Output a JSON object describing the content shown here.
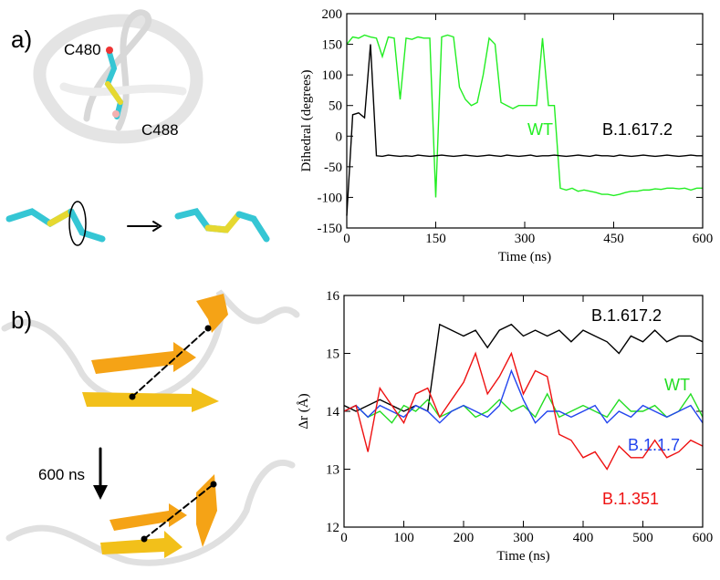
{
  "figure": {
    "panel_labels": [
      "a)",
      "b)"
    ],
    "annotations": [
      "C480",
      "C488",
      "600 ns"
    ]
  },
  "chart_data": [
    {
      "type": "line",
      "x_label": "Time (ns)",
      "y_label": "Dihedral (degrees)",
      "xlim": [
        0,
        600
      ],
      "xticks": [
        0,
        150,
        300,
        450,
        600
      ],
      "ylim": [
        -150,
        200
      ],
      "yticks": [
        -150,
        -100,
        -50,
        0,
        50,
        100,
        150,
        200
      ],
      "x": [
        0,
        10,
        20,
        30,
        40,
        50,
        60,
        70,
        80,
        90,
        100,
        110,
        120,
        130,
        140,
        150,
        160,
        170,
        180,
        190,
        200,
        210,
        220,
        230,
        240,
        250,
        260,
        270,
        280,
        290,
        300,
        310,
        320,
        330,
        340,
        350,
        360,
        370,
        380,
        390,
        400,
        410,
        420,
        430,
        440,
        450,
        460,
        470,
        480,
        490,
        500,
        510,
        520,
        530,
        540,
        550,
        560,
        570,
        580,
        590,
        600
      ],
      "series": [
        {
          "name": "WT",
          "color": "#22ee22",
          "values": [
            150,
            162,
            160,
            165,
            162,
            160,
            130,
            162,
            160,
            60,
            160,
            158,
            162,
            160,
            160,
            -100,
            162,
            165,
            162,
            80,
            60,
            50,
            55,
            100,
            160,
            150,
            55,
            50,
            45,
            50,
            50,
            50,
            50,
            160,
            50,
            50,
            -85,
            -88,
            -85,
            -90,
            -88,
            -90,
            -92,
            -95,
            -95,
            -97,
            -95,
            -92,
            -90,
            -90,
            -88,
            -88,
            -86,
            -87,
            -85,
            -85,
            -86,
            -85,
            -88,
            -85,
            -85
          ]
        },
        {
          "name": "B.1.617.2",
          "color": "#000000",
          "values": [
            -130,
            35,
            38,
            30,
            150,
            -32,
            -33,
            -31,
            -32,
            -33,
            -32,
            -33,
            -31,
            -32,
            -33,
            -32,
            -31,
            -32,
            -33,
            -32,
            -31,
            -32,
            -33,
            -32,
            -31,
            -32,
            -33,
            -31,
            -32,
            -33,
            -32,
            -31,
            -33,
            -32,
            -32,
            -31,
            -32,
            -33,
            -32,
            -31,
            -32,
            -33,
            -31,
            -32,
            -32,
            -33,
            -31,
            -32,
            -33,
            -32,
            -31,
            -32,
            -33,
            -32,
            -31,
            -32,
            -33,
            -32,
            -31,
            -32,
            -32
          ]
        }
      ]
    },
    {
      "type": "line",
      "x_label": "Time (ns)",
      "y_label": "Δr  (Å)",
      "xlim": [
        0,
        600
      ],
      "xticks": [
        0,
        100,
        200,
        300,
        400,
        500,
        600
      ],
      "ylim": [
        12,
        16
      ],
      "yticks": [
        12,
        13,
        14,
        15,
        16
      ],
      "x": [
        0,
        20,
        40,
        60,
        80,
        100,
        120,
        140,
        160,
        180,
        200,
        220,
        240,
        260,
        280,
        300,
        320,
        340,
        360,
        380,
        400,
        420,
        440,
        460,
        480,
        500,
        520,
        540,
        560,
        580,
        600
      ],
      "series": [
        {
          "name": "B.1.617.2",
          "color": "#000000",
          "values": [
            14.1,
            14.0,
            14.1,
            14.2,
            14.1,
            14.0,
            14.1,
            14.0,
            15.5,
            15.4,
            15.3,
            15.4,
            15.1,
            15.4,
            15.5,
            15.3,
            15.4,
            15.3,
            15.4,
            15.2,
            15.4,
            15.3,
            15.2,
            15.0,
            15.3,
            15.2,
            15.4,
            15.2,
            15.3,
            15.3,
            15.2
          ]
        },
        {
          "name": "WT",
          "color": "#22dd22",
          "values": [
            14.0,
            14.1,
            13.9,
            14.0,
            13.8,
            14.1,
            14.0,
            14.2,
            13.9,
            14.0,
            14.1,
            13.9,
            14.0,
            14.2,
            14.0,
            14.1,
            13.9,
            14.3,
            13.9,
            14.0,
            14.1,
            14.0,
            13.9,
            14.2,
            14.0,
            14.0,
            14.1,
            13.9,
            14.0,
            14.3,
            13.9
          ]
        },
        {
          "name": "B.1.1.7",
          "color": "#2244ee",
          "values": [
            14.0,
            14.1,
            13.9,
            14.1,
            14.0,
            13.9,
            14.1,
            14.0,
            13.8,
            14.0,
            14.1,
            14.0,
            13.9,
            14.1,
            14.7,
            14.2,
            13.8,
            14.0,
            14.0,
            13.9,
            14.0,
            14.1,
            13.8,
            14.0,
            13.9,
            14.1,
            14.0,
            13.9,
            14.0,
            14.1,
            13.8
          ]
        },
        {
          "name": "B.1.351",
          "color": "#ee1111",
          "values": [
            14.0,
            14.1,
            13.3,
            14.4,
            14.1,
            13.8,
            14.3,
            14.4,
            13.9,
            14.2,
            14.5,
            15.0,
            14.3,
            14.6,
            15.0,
            14.3,
            14.7,
            14.6,
            13.6,
            13.5,
            13.2,
            13.3,
            13.0,
            13.4,
            13.2,
            13.2,
            13.5,
            13.2,
            13.3,
            13.5,
            13.4
          ]
        }
      ]
    }
  ]
}
